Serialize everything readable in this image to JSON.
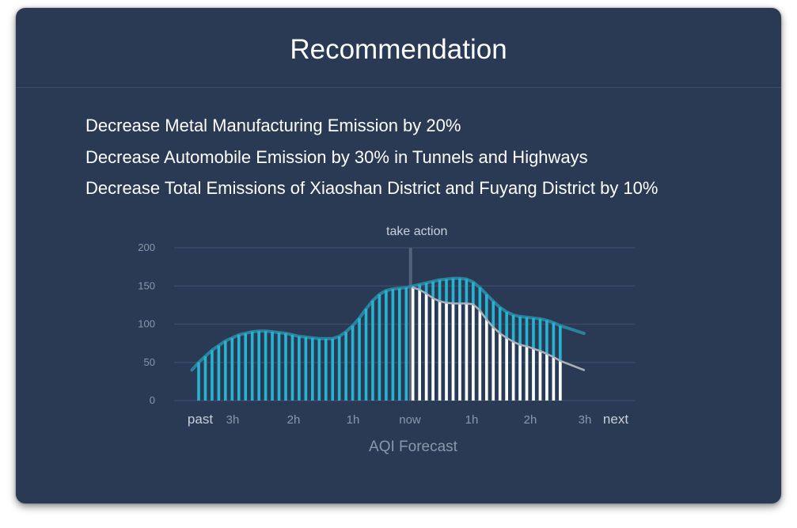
{
  "card": {
    "title": "Recommendation",
    "recommendations": [
      "Decrease Metal Manufacturing Emission by 20%",
      "Decrease Automobile Emission by 30% in Tunnels and Highways",
      "Decrease Total Emissions of Xiaoshan District and Fuyang District by 10%"
    ]
  },
  "chart_data": {
    "type": "bar",
    "title": "AQI Forecast",
    "annotation": "take action",
    "x_ticks": [
      "past",
      "3h",
      "2h",
      "1h",
      "now",
      "1h",
      "2h",
      "3h",
      "next"
    ],
    "y_ticks": [
      "200",
      "150",
      "100",
      "50",
      "0"
    ],
    "ylim": [
      0,
      200
    ],
    "grid": true,
    "series": [
      {
        "role": "baseline forecast",
        "color": "#27b4d1",
        "values": [
          50,
          58,
          66,
          72,
          78,
          82,
          86,
          88,
          90,
          91,
          91,
          90,
          89,
          88,
          86,
          84,
          83,
          82,
          81,
          81,
          81,
          84,
          90,
          98,
          108,
          120,
          131,
          139,
          144,
          146,
          147,
          148,
          150,
          152,
          154,
          156,
          158,
          159,
          160,
          160,
          159,
          155,
          148,
          139,
          130,
          122,
          116,
          112,
          110,
          109,
          108,
          107,
          105,
          102,
          98
        ]
      },
      {
        "role": "after action",
        "color": "#ffffff",
        "values": [
          148,
          145,
          140,
          134,
          130,
          128,
          127,
          127,
          127,
          126,
          118,
          106,
          96,
          88,
          82,
          77,
          73,
          71,
          68,
          65,
          61,
          57,
          52
        ]
      }
    ],
    "colors": {
      "background": "#2a3a55",
      "grid": "#384a66",
      "bar": "#27b4d1",
      "bar_action": "#ffffff",
      "tick": "#8a97ab",
      "axis_text": "#c9d0db",
      "marker": "#55627a",
      "trend_baseline": "#2a8ba5",
      "trend_action": "#a9b1bd"
    }
  }
}
